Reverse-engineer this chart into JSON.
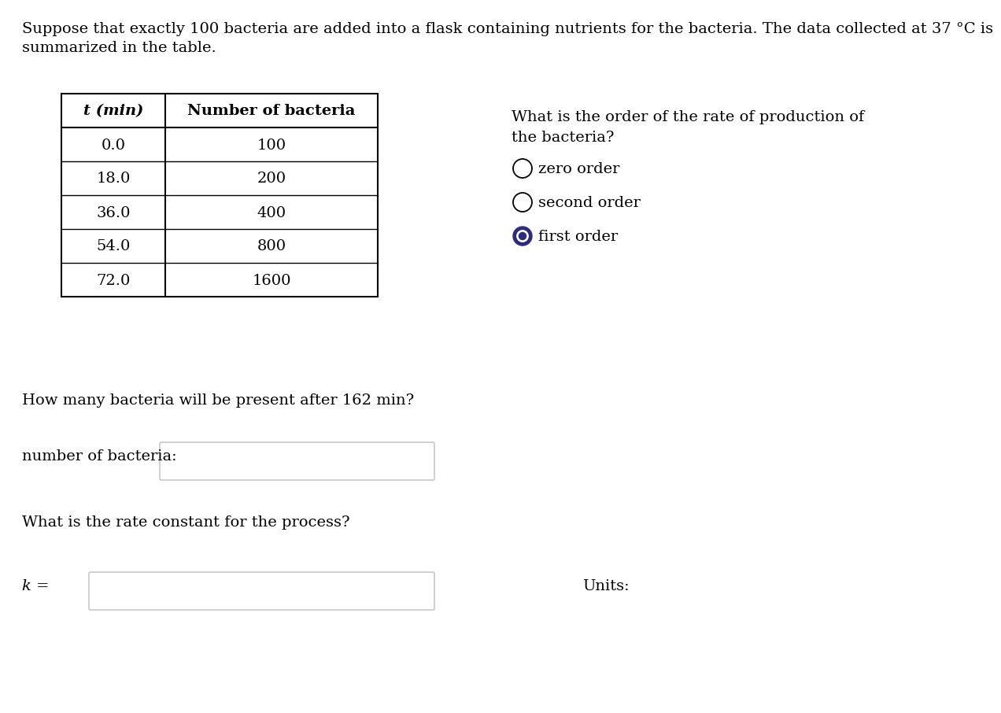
{
  "title_line1": "Suppose that exactly 100 bacteria are added into a flask containing nutrients for the bacteria. The data collected at 37 °C is",
  "title_line2": "summarized in the table.",
  "table_headers": [
    "t (min)",
    "Number of bacteria"
  ],
  "table_data": [
    [
      "0.0",
      "100"
    ],
    [
      "18.0",
      "200"
    ],
    [
      "36.0",
      "400"
    ],
    [
      "54.0",
      "800"
    ],
    [
      "72.0",
      "1600"
    ]
  ],
  "question1": "How many bacteria will be present after 162 min?",
  "label_bacteria": "number of bacteria:",
  "question2": "What is the rate constant for the process?",
  "label_k": "k =",
  "label_units": "Units:",
  "order_question_line1": "What is the order of the rate of production of",
  "order_question_line2": "the bacteria?",
  "radio_options": [
    "zero order",
    "second order",
    "first order"
  ],
  "selected_option": 2,
  "selected_color": "#2e2b7a",
  "bg_color": "#ffffff",
  "text_color": "#000000",
  "input_box_color": "#c8c8c8",
  "font_size": 14,
  "title_font_size": 14
}
